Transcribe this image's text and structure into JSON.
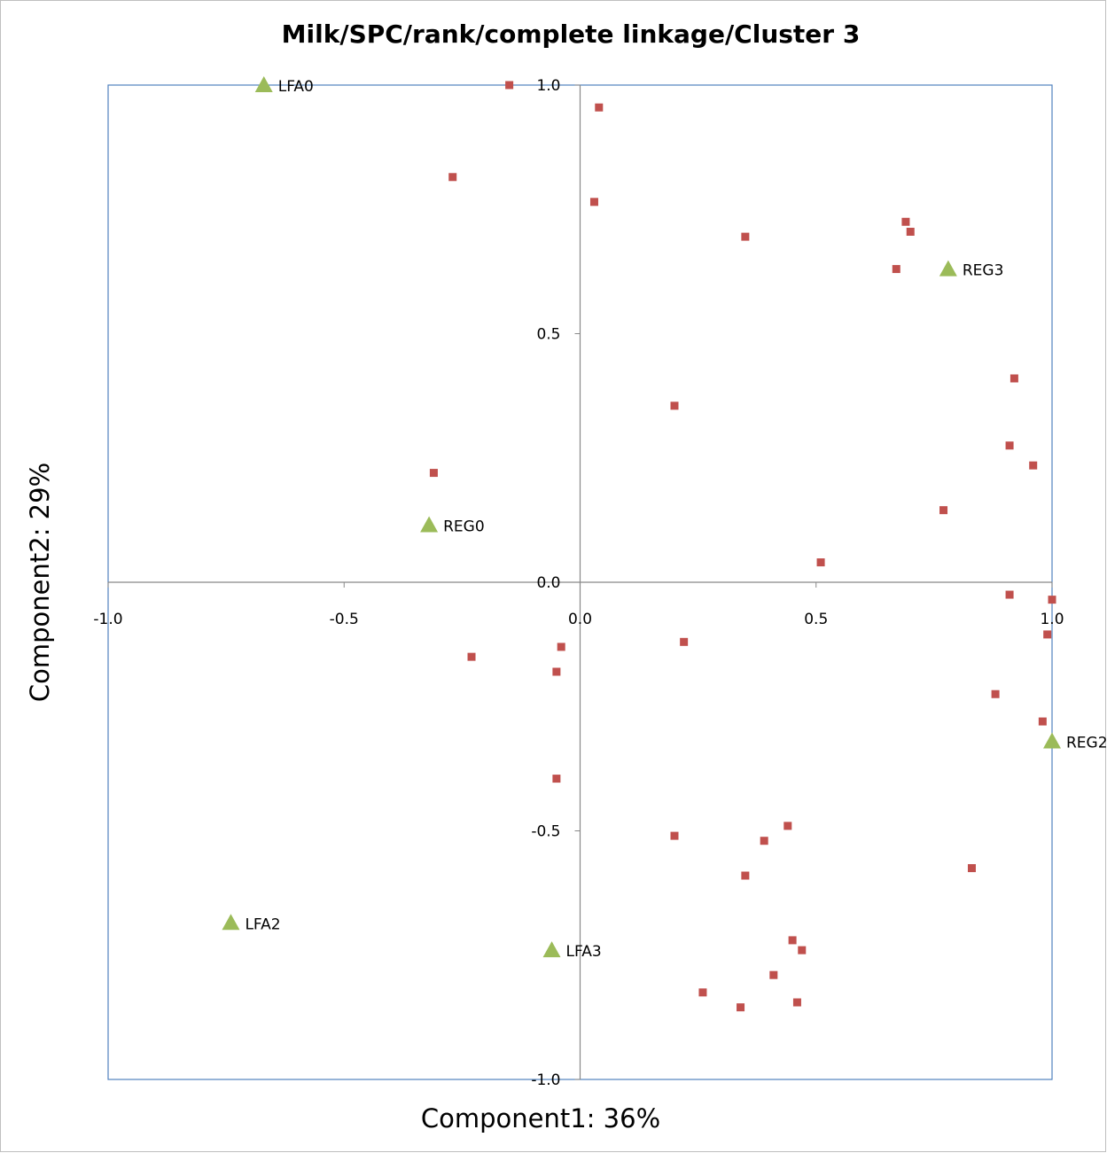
{
  "chart_data": {
    "type": "scatter",
    "title": "Milk/SPC/rank/complete  linkage/Cluster 3",
    "xlabel": "Component1: 36%",
    "ylabel": "Component2: 29%",
    "xlim": [
      -1.0,
      1.0
    ],
    "ylim": [
      -1.0,
      1.0
    ],
    "x_ticks": [
      "-1.0",
      "-0.5",
      "0.0",
      "0.5",
      "1.0"
    ],
    "y_ticks": [
      "1.0",
      "0.5",
      "0.0",
      "-0.5",
      "-1.0"
    ],
    "grid": false,
    "colors": {
      "squares": "#c0504d",
      "triangles": "#9bbb59",
      "border": "#4f81bd",
      "axes": "#888888"
    },
    "series": [
      {
        "marker": "square",
        "points": [
          [
            -0.15,
            1.0
          ],
          [
            0.04,
            0.955
          ],
          [
            -0.27,
            0.815
          ],
          [
            0.03,
            0.765
          ],
          [
            0.35,
            0.695
          ],
          [
            0.69,
            0.725
          ],
          [
            0.7,
            0.705
          ],
          [
            0.67,
            0.63
          ],
          [
            0.2,
            0.355
          ],
          [
            0.92,
            0.41
          ],
          [
            0.91,
            0.275
          ],
          [
            0.96,
            0.235
          ],
          [
            -0.31,
            0.22
          ],
          [
            0.77,
            0.145
          ],
          [
            0.51,
            0.04
          ],
          [
            0.91,
            -0.025
          ],
          [
            1.0,
            -0.035
          ],
          [
            0.99,
            -0.105
          ],
          [
            0.22,
            -0.12
          ],
          [
            -0.04,
            -0.13
          ],
          [
            -0.23,
            -0.15
          ],
          [
            -0.05,
            -0.18
          ],
          [
            0.88,
            -0.225
          ],
          [
            0.98,
            -0.28
          ],
          [
            -0.05,
            -0.395
          ],
          [
            0.44,
            -0.49
          ],
          [
            0.2,
            -0.51
          ],
          [
            0.39,
            -0.52
          ],
          [
            0.83,
            -0.575
          ],
          [
            0.35,
            -0.59
          ],
          [
            0.45,
            -0.72
          ],
          [
            0.47,
            -0.74
          ],
          [
            0.41,
            -0.79
          ],
          [
            0.26,
            -0.825
          ],
          [
            0.46,
            -0.845
          ],
          [
            0.34,
            -0.855
          ]
        ]
      },
      {
        "marker": "triangle",
        "points": [
          {
            "x": -0.67,
            "y": 1.0,
            "label": "LFA0"
          },
          {
            "x": 0.78,
            "y": 0.63,
            "label": "REG3"
          },
          {
            "x": -0.32,
            "y": 0.115,
            "label": "REG0"
          },
          {
            "x": 1.0,
            "y": -0.32,
            "label": "REG2"
          },
          {
            "x": -0.74,
            "y": -0.685,
            "label": "LFA2"
          },
          {
            "x": -0.06,
            "y": -0.74,
            "label": "LFA3"
          }
        ]
      }
    ]
  }
}
